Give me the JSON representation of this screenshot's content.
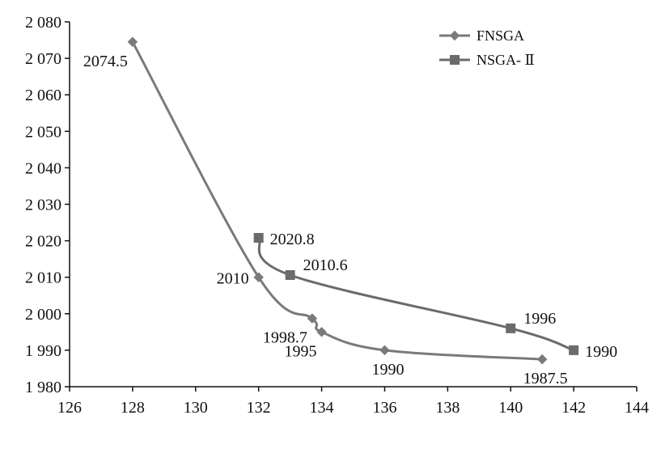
{
  "chart_data": {
    "type": "line",
    "xlim": [
      126,
      144
    ],
    "ylim": [
      1980,
      2080
    ],
    "x_ticks": [
      {
        "value": 126,
        "label": "126"
      },
      {
        "value": 128,
        "label": "128"
      },
      {
        "value": 130,
        "label": "130"
      },
      {
        "value": 132,
        "label": "132"
      },
      {
        "value": 134,
        "label": "134"
      },
      {
        "value": 136,
        "label": "136"
      },
      {
        "value": 138,
        "label": "138"
      },
      {
        "value": 140,
        "label": "140"
      },
      {
        "value": 142,
        "label": "142"
      },
      {
        "value": 144,
        "label": "144"
      }
    ],
    "y_ticks": [
      {
        "value": 1980,
        "label": "1 980"
      },
      {
        "value": 1990,
        "label": "1 990"
      },
      {
        "value": 2000,
        "label": "2 000"
      },
      {
        "value": 2010,
        "label": "2 010"
      },
      {
        "value": 2020,
        "label": "2 020"
      },
      {
        "value": 2030,
        "label": "2 030"
      },
      {
        "value": 2040,
        "label": "2 040"
      },
      {
        "value": 2050,
        "label": "2 050"
      },
      {
        "value": 2060,
        "label": "2 060"
      },
      {
        "value": 2070,
        "label": "2 070"
      },
      {
        "value": 2080,
        "label": "2 080"
      }
    ],
    "grid": false,
    "legend_position": "top-right",
    "series": [
      {
        "name": "FNSGA",
        "marker": "diamond",
        "color": "#7a7a7a",
        "points": [
          {
            "x": 128,
            "y": 2074.5,
            "label": "2074.5",
            "label_pos": "below-left"
          },
          {
            "x": 132,
            "y": 2010,
            "label": "2010",
            "label_pos": "left"
          },
          {
            "x": 133.7,
            "y": 1998.7,
            "label": "1998.7",
            "label_pos": "below-left"
          },
          {
            "x": 134,
            "y": 1995,
            "label": "1995",
            "label_pos": "below-left"
          },
          {
            "x": 136,
            "y": 1990,
            "label": "1990",
            "label_pos": "below"
          },
          {
            "x": 141,
            "y": 1987.5,
            "label": "1987.5",
            "label_pos": "below"
          }
        ]
      },
      {
        "name": "NSGA- Ⅱ",
        "marker": "square",
        "color": "#6b6b6b",
        "points": [
          {
            "x": 132,
            "y": 2020.8,
            "label": "2020.8",
            "label_pos": "right"
          },
          {
            "x": 133,
            "y": 2010.6,
            "label": "2010.6",
            "label_pos": "above-right"
          },
          {
            "x": 140,
            "y": 1996,
            "label": "1996",
            "label_pos": "above-right"
          },
          {
            "x": 142,
            "y": 1990,
            "label": "1990",
            "label_pos": "right"
          }
        ]
      }
    ]
  }
}
